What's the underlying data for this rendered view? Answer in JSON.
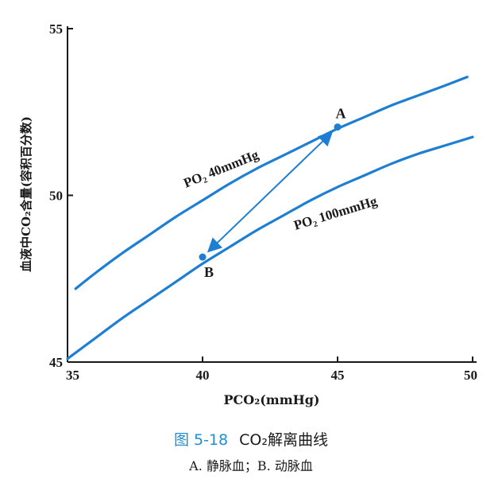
{
  "chart_data": {
    "type": "line",
    "xlabel": "PCO₂(mmHg)",
    "ylabel": "血液中CO₂含量(容积百分数)",
    "xlim": [
      35,
      50
    ],
    "ylim": [
      45,
      55
    ],
    "xticks": [
      35,
      40,
      45,
      50
    ],
    "yticks": [
      45,
      50,
      55
    ],
    "series": [
      {
        "name": "PO₂ 40mmHg",
        "x": [
          35.3,
          36,
          37,
          38,
          39,
          40,
          41,
          42,
          43,
          44,
          45,
          46,
          47,
          48,
          49,
          49.8
        ],
        "y": [
          47.2,
          47.65,
          48.25,
          48.8,
          49.35,
          49.85,
          50.35,
          50.8,
          51.2,
          51.6,
          52.0,
          52.35,
          52.7,
          53.0,
          53.3,
          53.55
        ]
      },
      {
        "name": "PO₂ 100mmHg",
        "x": [
          35,
          36,
          37,
          38,
          39,
          40,
          41,
          42,
          43,
          44,
          45,
          46,
          47,
          48,
          49,
          50
        ],
        "y": [
          45.1,
          45.7,
          46.3,
          46.85,
          47.4,
          47.95,
          48.45,
          48.95,
          49.4,
          49.85,
          50.25,
          50.6,
          50.95,
          51.25,
          51.5,
          51.75
        ]
      }
    ],
    "points": [
      {
        "label": "A",
        "x": 45,
        "y": 52.05
      },
      {
        "label": "B",
        "x": 40,
        "y": 48.15
      }
    ],
    "colors": {
      "curve": "#1e7fd2",
      "axis": "#1a1a1a"
    },
    "grid": false
  },
  "caption": {
    "figure_number": "图 5-18",
    "title": "CO₂解离曲线",
    "subtitle": "A. 静脉血；B. 动脉血"
  }
}
